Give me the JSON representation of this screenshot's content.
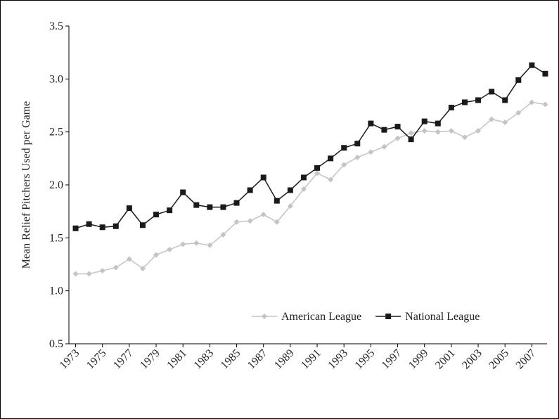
{
  "chart_data": {
    "type": "line",
    "y_label": "Mean Relief Pitchers Used per Game",
    "x": [
      1973,
      1974,
      1975,
      1976,
      1977,
      1978,
      1979,
      1980,
      1981,
      1982,
      1983,
      1984,
      1985,
      1986,
      1987,
      1988,
      1989,
      1990,
      1991,
      1992,
      1993,
      1994,
      1995,
      1996,
      1997,
      1998,
      1999,
      2000,
      2001,
      2002,
      2003,
      2004,
      2005,
      2006,
      2007,
      2008
    ],
    "xlim": [
      1972.5,
      2008.5
    ],
    "xticks": [
      1973,
      1975,
      1977,
      1979,
      1981,
      1983,
      1985,
      1987,
      1989,
      1991,
      1993,
      1995,
      1997,
      1999,
      2001,
      2003,
      2005,
      2007
    ],
    "ylim": [
      0.5,
      3.5
    ],
    "yticks": [
      0.5,
      {
        "value": 1.0,
        "label": "1.0"
      },
      1.5,
      {
        "value": 2.0,
        "label": "2.0"
      },
      2.5,
      {
        "value": 3.0,
        "label": "3.0"
      },
      3.5
    ],
    "legend": "lower right",
    "series": [
      {
        "name": "American League",
        "color": "#c4c4c4",
        "marker": "diamond",
        "values": [
          1.16,
          1.16,
          1.19,
          1.22,
          1.3,
          1.21,
          1.34,
          1.39,
          1.44,
          1.45,
          1.43,
          1.53,
          1.65,
          1.66,
          1.72,
          1.65,
          1.8,
          1.96,
          2.11,
          2.05,
          2.19,
          2.26,
          2.31,
          2.36,
          2.44,
          2.49,
          2.51,
          2.5,
          2.51,
          2.45,
          2.51,
          2.62,
          2.59,
          2.68,
          2.78,
          2.76
        ]
      },
      {
        "name": "National League",
        "color": "#1a1a1a",
        "marker": "square",
        "values": [
          1.59,
          1.63,
          1.6,
          1.61,
          1.78,
          1.62,
          1.72,
          1.76,
          1.93,
          1.81,
          1.79,
          1.79,
          1.83,
          1.95,
          2.07,
          1.85,
          1.95,
          2.07,
          2.16,
          2.25,
          2.35,
          2.39,
          2.58,
          2.52,
          2.55,
          2.43,
          2.6,
          2.58,
          2.73,
          2.78,
          2.8,
          2.88,
          2.8,
          2.99,
          3.13,
          3.05
        ]
      }
    ]
  }
}
